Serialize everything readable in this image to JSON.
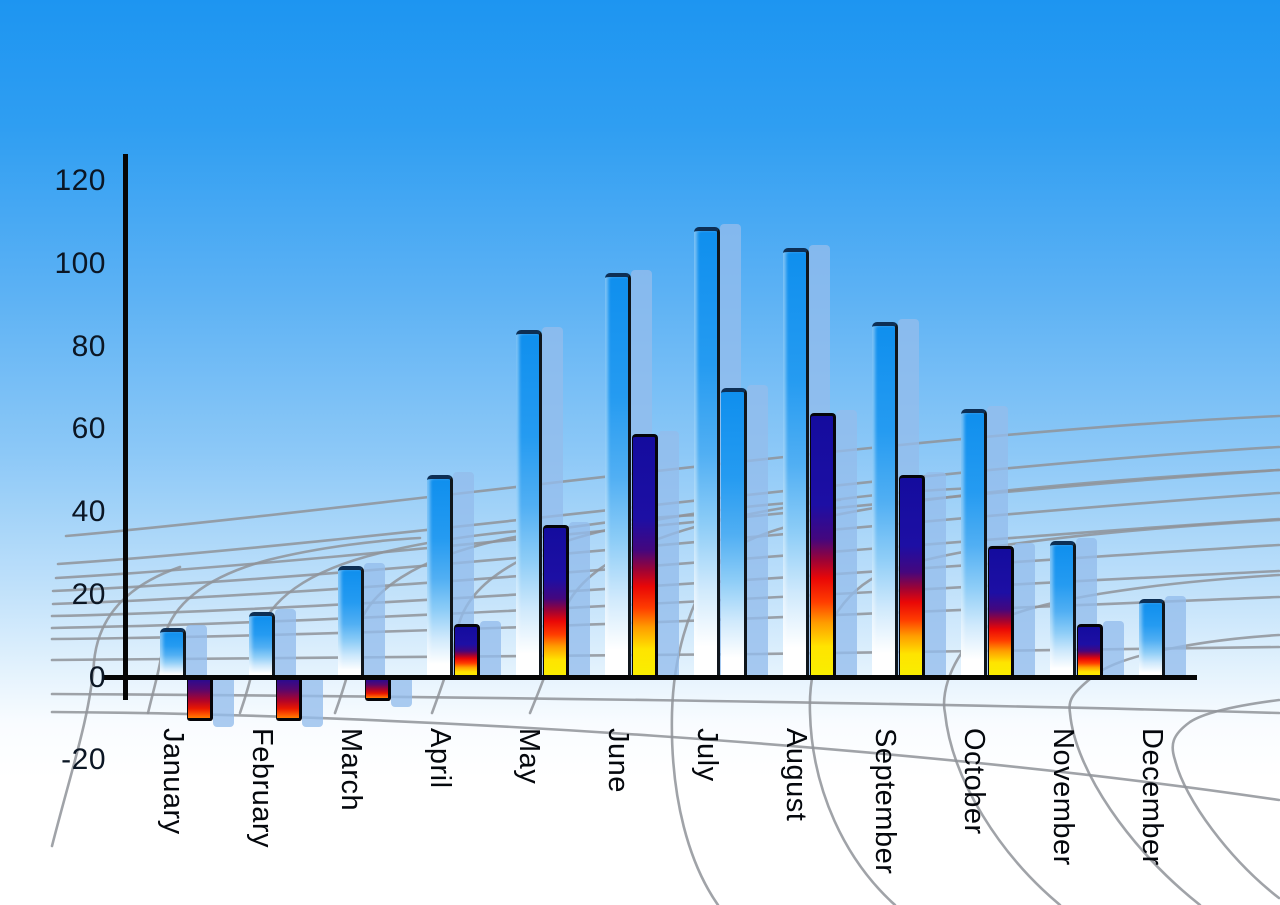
{
  "chart_data": {
    "type": "bar",
    "title": "",
    "xlabel": "",
    "ylabel": "",
    "categories": [
      "January",
      "February",
      "March",
      "April",
      "May",
      "June",
      "July",
      "August",
      "September",
      "October",
      "November",
      "December"
    ],
    "series": [
      {
        "name": "primary-blue-bars",
        "values": [
          12,
          16,
          27,
          49,
          84,
          98,
          109,
          104,
          86,
          65,
          33,
          19
        ]
      },
      {
        "name": "secondary-fire-bars",
        "values": [
          -10,
          -10,
          -5,
          13,
          37,
          59,
          70,
          64,
          49,
          32,
          13,
          null
        ]
      }
    ],
    "secondary_style_exception": {
      "category": "July",
      "style": "blue-gradient"
    },
    "ylim": [
      -20,
      120
    ],
    "yticks": [
      120,
      100,
      80,
      60,
      40,
      20,
      0,
      -20
    ],
    "legend": "none",
    "grid": "decorative gray perspective grid over sky gradient"
  },
  "colors": {
    "sky_top": "#1d95f1",
    "sky_bottom": "#ffffff",
    "grid_line": "#8f9399",
    "axis": "#060606",
    "tick_text": "#0b1624",
    "month_text": "#05080d",
    "bar_blue_top": "#0f8fee",
    "bar_blue_bottom": "#ffffff",
    "fire_navy": "#140c9e",
    "fire_red": "#e90707",
    "fire_yellow": "#f8ef00",
    "echo": "rgba(147,188,236,0.78)"
  }
}
